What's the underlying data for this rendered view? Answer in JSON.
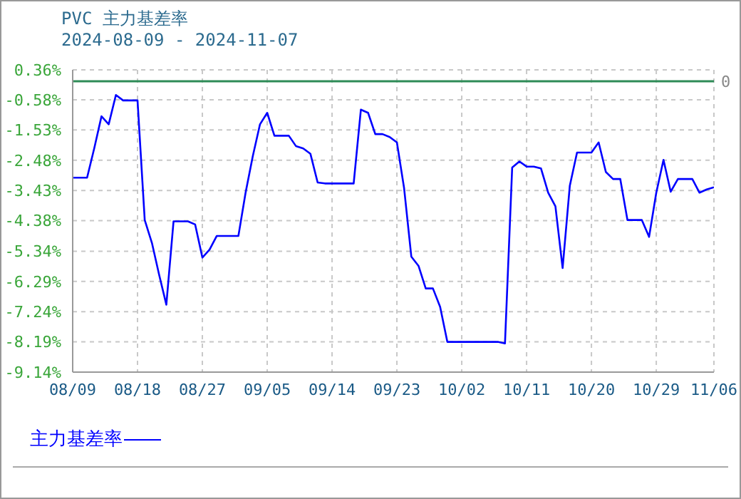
{
  "chart_data": {
    "type": "line",
    "title": "PVC 主力基差率",
    "subtitle": "2024-08-09 - 2024-11-07",
    "x": [
      "2024-08-09",
      "2024-08-10",
      "2024-08-11",
      "2024-08-12",
      "2024-08-13",
      "2024-08-14",
      "2024-08-15",
      "2024-08-16",
      "2024-08-17",
      "2024-08-18",
      "2024-08-19",
      "2024-08-20",
      "2024-08-21",
      "2024-08-22",
      "2024-08-23",
      "2024-08-24",
      "2024-08-25",
      "2024-08-26",
      "2024-08-27",
      "2024-08-28",
      "2024-08-29",
      "2024-08-30",
      "2024-08-31",
      "2024-09-01",
      "2024-09-02",
      "2024-09-03",
      "2024-09-04",
      "2024-09-05",
      "2024-09-06",
      "2024-09-07",
      "2024-09-08",
      "2024-09-09",
      "2024-09-10",
      "2024-09-11",
      "2024-09-12",
      "2024-09-13",
      "2024-09-14",
      "2024-09-15",
      "2024-09-16",
      "2024-09-17",
      "2024-09-18",
      "2024-09-19",
      "2024-09-20",
      "2024-09-21",
      "2024-09-22",
      "2024-09-23",
      "2024-09-24",
      "2024-09-25",
      "2024-09-26",
      "2024-09-27",
      "2024-09-28",
      "2024-09-29",
      "2024-09-30",
      "2024-10-01",
      "2024-10-02",
      "2024-10-03",
      "2024-10-04",
      "2024-10-05",
      "2024-10-06",
      "2024-10-07",
      "2024-10-08",
      "2024-10-09",
      "2024-10-10",
      "2024-10-11",
      "2024-10-12",
      "2024-10-13",
      "2024-10-14",
      "2024-10-15",
      "2024-10-16",
      "2024-10-17",
      "2024-10-18",
      "2024-10-19",
      "2024-10-20",
      "2024-10-21",
      "2024-10-22",
      "2024-10-23",
      "2024-10-24",
      "2024-10-25",
      "2024-10-26",
      "2024-10-27",
      "2024-10-28",
      "2024-10-29",
      "2024-10-30",
      "2024-10-31",
      "2024-11-01",
      "2024-11-02",
      "2024-11-03",
      "2024-11-04",
      "2024-11-05",
      "2024-11-06"
    ],
    "series": [
      {
        "name": "主力基差率",
        "color": "#0000ff",
        "values": [
          -3.03,
          -3.03,
          -3.03,
          -2.1,
          -1.1,
          -1.35,
          -0.43,
          -0.6,
          -0.6,
          -0.6,
          -4.36,
          -5.08,
          -6.08,
          -7.02,
          -4.4,
          -4.4,
          -4.4,
          -4.5,
          -5.54,
          -5.29,
          -4.86,
          -4.86,
          -4.86,
          -4.86,
          -3.5,
          -2.35,
          -1.35,
          -0.99,
          -1.71,
          -1.71,
          -1.71,
          -2.04,
          -2.11,
          -2.28,
          -3.18,
          -3.21,
          -3.21,
          -3.21,
          -3.21,
          -3.21,
          -0.89,
          -0.99,
          -1.66,
          -1.66,
          -1.75,
          -1.92,
          -3.36,
          -5.51,
          -5.8,
          -6.51,
          -6.51,
          -7.09,
          -8.19,
          -8.19,
          -8.19,
          -8.19,
          -8.19,
          -8.19,
          -8.19,
          -8.19,
          -8.24,
          -2.71,
          -2.52,
          -2.68,
          -2.68,
          -2.74,
          -3.5,
          -3.93,
          -5.87,
          -3.28,
          -2.24,
          -2.24,
          -2.24,
          -1.92,
          -2.85,
          -3.07,
          -3.07,
          -4.36,
          -4.36,
          -4.36,
          -4.89,
          -3.5,
          -2.47,
          -3.47,
          -3.07,
          -3.07,
          -3.07,
          -3.5,
          -3.4,
          -3.33
        ]
      }
    ],
    "xlim": [
      "2024-08-09",
      "2024-11-06"
    ],
    "xticks": [
      {
        "value": "2024-08-09",
        "label": "08/09"
      },
      {
        "value": "2024-08-18",
        "label": "08/18"
      },
      {
        "value": "2024-08-27",
        "label": "08/27"
      },
      {
        "value": "2024-09-05",
        "label": "09/05"
      },
      {
        "value": "2024-09-14",
        "label": "09/14"
      },
      {
        "value": "2024-09-23",
        "label": "09/23"
      },
      {
        "value": "2024-10-02",
        "label": "10/02"
      },
      {
        "value": "2024-10-11",
        "label": "10/11"
      },
      {
        "value": "2024-10-20",
        "label": "10/20"
      },
      {
        "value": "2024-10-29",
        "label": "10/29"
      },
      {
        "value": "2024-11-06",
        "label": "11/06"
      }
    ],
    "ylim": [
      -9.14,
      0.36
    ],
    "yticks": [
      {
        "value": -9.14,
        "label": "-9.14%"
      },
      {
        "value": -8.19,
        "label": "-8.19%"
      },
      {
        "value": -7.24,
        "label": "-7.24%"
      },
      {
        "value": -6.29,
        "label": "-6.29%"
      },
      {
        "value": -5.34,
        "label": "-5.34%"
      },
      {
        "value": -4.38,
        "label": "-4.38%"
      },
      {
        "value": -3.43,
        "label": "-3.43%"
      },
      {
        "value": -2.48,
        "label": "-2.48%"
      },
      {
        "value": -1.53,
        "label": "-1.53%"
      },
      {
        "value": -0.58,
        "label": "-0.58%"
      },
      {
        "value": 0.36,
        "label": "0.36%"
      }
    ],
    "ref_lines": [
      {
        "axis": "y",
        "value": 0,
        "label": "0",
        "color": "#2e8b57"
      }
    ],
    "grid": true,
    "legend": "bottom left",
    "marker": "none",
    "line_style": "solid"
  }
}
